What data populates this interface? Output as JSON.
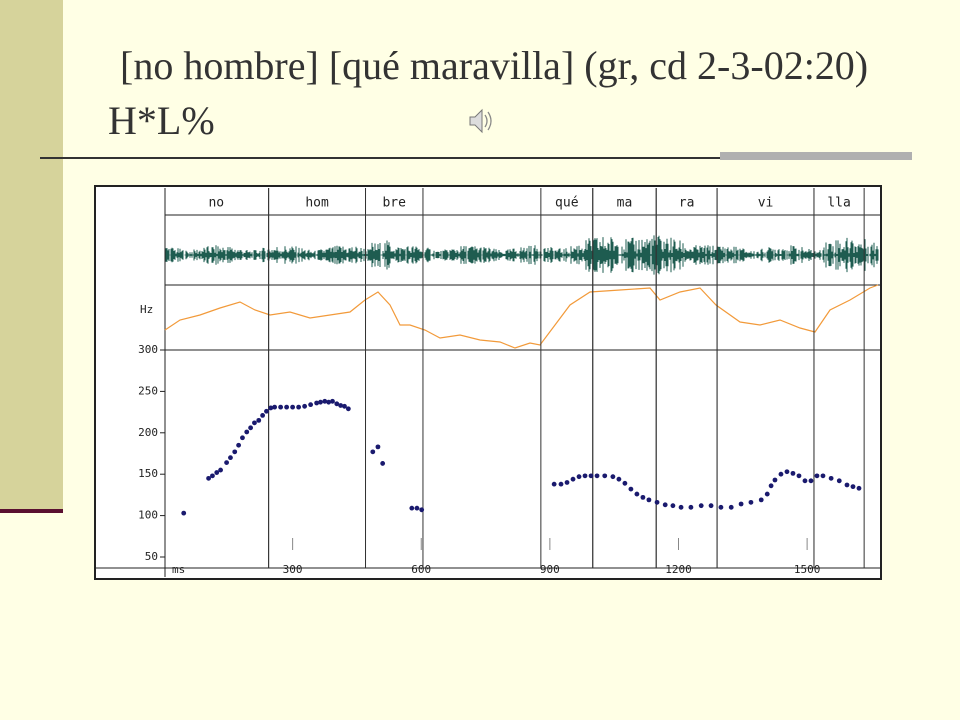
{
  "slide": {
    "title": "[no hombre] [qué maravilla] (gr, cd 2-3-02:20) H*L%"
  },
  "chart_data": {
    "type": "scatter",
    "x_unit": "ms",
    "y_unit": "Hz",
    "color": "#1a1a6e",
    "xlim": [
      0,
      1670
    ],
    "xticks": [
      300,
      600,
      900,
      1200,
      1500
    ],
    "ylim": [
      50,
      300
    ],
    "yticks": [
      50,
      100,
      150,
      200,
      250,
      300
    ],
    "syllables": [
      {
        "label": "no",
        "start": 0,
        "end": 244
      },
      {
        "label": "hom",
        "start": 244,
        "end": 470
      },
      {
        "label": "bre",
        "start": 470,
        "end": 604
      },
      {
        "label": "qué",
        "start": 879,
        "end": 1000
      },
      {
        "label": "ma",
        "start": 1000,
        "end": 1148
      },
      {
        "label": "ra",
        "start": 1148,
        "end": 1290
      },
      {
        "label": "vi",
        "start": 1290,
        "end": 1516
      },
      {
        "label": "lla",
        "start": 1516,
        "end": 1633
      }
    ],
    "x": [
      46,
      104,
      113,
      123,
      132,
      146,
      155,
      165,
      174,
      183,
      193,
      202,
      211,
      221,
      230,
      239,
      249,
      258,
      272,
      286,
      300,
      314,
      328,
      342,
      356,
      365,
      375,
      384,
      393,
      403,
      412,
      421,
      430,
      487,
      499,
      510,
      578,
      590,
      601,
      910,
      926,
      940,
      954,
      968,
      982,
      996,
      1010,
      1028,
      1047,
      1061,
      1075,
      1089,
      1103,
      1117,
      1131,
      1150,
      1169,
      1187,
      1206,
      1229,
      1253,
      1276,
      1299,
      1323,
      1346,
      1369,
      1393,
      1407,
      1416,
      1425,
      1439,
      1453,
      1467,
      1481,
      1495,
      1509,
      1523,
      1537,
      1556,
      1575,
      1593,
      1607,
      1621
    ],
    "y": [
      103,
      145,
      148,
      152,
      155,
      164,
      170,
      177,
      185,
      194,
      201,
      206,
      212,
      215,
      221,
      226,
      230,
      231,
      231,
      231,
      231,
      231,
      232,
      234,
      236,
      237,
      238,
      237,
      238,
      235,
      233,
      232,
      229,
      177,
      183,
      163,
      109,
      109,
      107,
      138,
      138,
      140,
      144,
      147,
      148,
      148,
      148,
      148,
      147,
      144,
      139,
      132,
      126,
      122,
      119,
      116,
      113,
      112,
      110,
      110,
      112,
      112,
      110,
      110,
      114,
      116,
      119,
      126,
      136,
      143,
      150,
      153,
      151,
      148,
      142,
      142,
      148,
      148,
      145,
      142,
      137,
      135,
      133
    ]
  }
}
